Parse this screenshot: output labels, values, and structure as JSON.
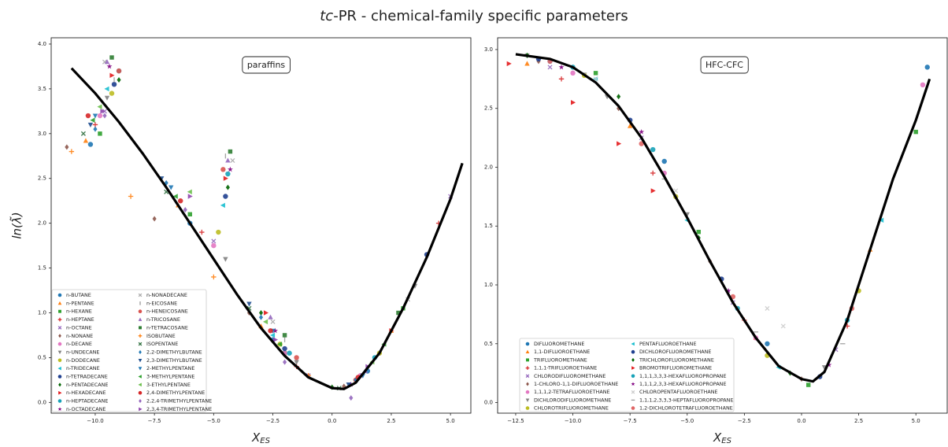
{
  "title": [
    "tc",
    "-PR - chemical-family specific parameters"
  ],
  "chart_data": [
    {
      "type": "scatter",
      "annotation": "paraffins",
      "ylabel": "ln(λ̃)",
      "xlabel": [
        "X",
        "ES"
      ],
      "legend": "lower left",
      "xlim": [
        -11.86,
        5.86
      ],
      "ylim": [
        -0.12,
        4.07
      ],
      "xticks": [
        {
          "value": -10,
          "label": "−10.0"
        },
        {
          "value": -7.5,
          "label": "−7.5"
        },
        {
          "value": -5,
          "label": "−5.0"
        },
        {
          "value": -2.5,
          "label": "−2.5"
        },
        {
          "value": 0,
          "label": "0.0"
        },
        {
          "value": 2.5,
          "label": "2.5"
        },
        {
          "value": 5,
          "label": "5.0"
        }
      ],
      "yticks": [
        {
          "value": 0,
          "label": "0.0"
        },
        0.5,
        {
          "value": 1,
          "label": "1.0"
        },
        1.5,
        {
          "value": 2,
          "label": "2.0"
        },
        2.5,
        {
          "value": 3,
          "label": "3.0"
        },
        3.5,
        {
          "value": 4,
          "label": "4.0"
        }
      ],
      "line": {
        "color": "#000000",
        "x": [
          -11,
          -10,
          -9,
          -8,
          -7,
          -6,
          -5,
          -4,
          -3,
          -2,
          -1,
          0,
          0.5,
          1,
          2,
          3,
          4,
          5,
          5.5
        ],
        "values": [
          3.73,
          3.45,
          3.13,
          2.78,
          2.4,
          2.0,
          1.6,
          1.2,
          0.83,
          0.52,
          0.28,
          0.16,
          0.15,
          0.22,
          0.55,
          1.05,
          1.62,
          2.27,
          2.67
        ]
      },
      "series": [
        {
          "name": "n-BUTANE",
          "color": "#1f77b4",
          "marker": "o",
          "x": [
            -10.2,
            -6,
            -2.5,
            1.5
          ],
          "values": [
            2.88,
            2.0,
            0.7,
            0.35
          ]
        },
        {
          "name": "n-PENTANE",
          "color": "#ff7f0e",
          "marker": "^",
          "x": [
            -10.4,
            -6.5,
            -3,
            2.5
          ],
          "values": [
            2.92,
            2.2,
            0.85,
            0.8
          ]
        },
        {
          "name": "n-HEXANE",
          "color": "#2ca02c",
          "marker": "s",
          "x": [
            -9.8,
            -6,
            -2,
            3
          ],
          "values": [
            3.0,
            2.1,
            0.55,
            1.05
          ]
        },
        {
          "name": "n-HEPTANE",
          "color": "#d62728",
          "marker": "P",
          "x": [
            -10,
            -5.5,
            -1.5,
            4.5
          ],
          "values": [
            3.1,
            1.9,
            0.4,
            2.0
          ]
        },
        {
          "name": "n-OCTANE",
          "color": "#9467bd",
          "marker": "X",
          "x": [
            -9.6,
            -5,
            -1,
            5
          ],
          "values": [
            3.25,
            1.8,
            0.3,
            2.3
          ]
        },
        {
          "name": "n-NONANE",
          "color": "#8c564b",
          "marker": "D",
          "x": [
            -11.2,
            -7.5,
            -3.5,
            0.5
          ],
          "values": [
            2.85,
            2.05,
            1.0,
            0.18
          ]
        },
        {
          "name": "n-DECANE",
          "color": "#e377c2",
          "marker": "o",
          "x": [
            -9.8,
            -5,
            -2,
            1.2
          ],
          "values": [
            3.2,
            1.75,
            0.55,
            0.3
          ]
        },
        {
          "name": "n-UNDECANE",
          "color": "#7f7f7f",
          "marker": "v",
          "x": [
            -9.5,
            -4.5,
            -1.5,
            3.5
          ],
          "values": [
            3.4,
            1.6,
            0.45,
            1.3
          ]
        },
        {
          "name": "n-DODECANE",
          "color": "#bcbd22",
          "marker": "o",
          "x": [
            -9.3,
            -4.8,
            -2.2,
            2
          ],
          "values": [
            3.45,
            1.9,
            0.65,
            0.55
          ]
        },
        {
          "name": "n-TRIDECANE",
          "color": "#17becf",
          "marker": "<",
          "x": [
            -9.5,
            -4.6,
            -2.5,
            1
          ],
          "values": [
            3.5,
            2.2,
            0.75,
            0.25
          ]
        },
        {
          "name": "n-TETRADECANE",
          "color": "#1f3f8f",
          "marker": "o",
          "x": [
            -9.2,
            -4.5,
            -2,
            4
          ],
          "values": [
            3.55,
            2.3,
            0.6,
            1.65
          ]
        },
        {
          "name": "n-PENTADECANE",
          "color": "#006400",
          "marker": "D",
          "x": [
            -9,
            -4.4,
            -3,
            0
          ],
          "values": [
            3.6,
            2.4,
            1.0,
            0.17
          ]
        },
        {
          "name": "n-HEXADECANE",
          "color": "#e31a1c",
          "marker": ">",
          "x": [
            -9.3,
            -4.5,
            -2.8,
            2.5
          ],
          "values": [
            3.65,
            2.5,
            1.0,
            0.8
          ]
        },
        {
          "name": "n-HEPTADECANE",
          "color": "#17a2b8",
          "marker": "o",
          "x": [
            -9,
            -4.4,
            -1.8,
            1.8
          ],
          "values": [
            3.7,
            2.55,
            0.55,
            0.5
          ]
        },
        {
          "name": "n-OCTADECANE",
          "color": "#800080",
          "marker": "*",
          "x": [
            -9.4,
            -4.3,
            -2.4,
            0.8
          ],
          "values": [
            3.75,
            2.6,
            0.8,
            0.2
          ]
        },
        {
          "name": "n-NONADECANE",
          "color": "#aaaaaa",
          "marker": "X",
          "x": [
            -9.6,
            -4.2,
            -2.5,
            3.2
          ],
          "values": [
            3.8,
            2.7,
            0.9,
            1.15
          ]
        },
        {
          "name": "n-EICOSANE",
          "color": "#999999",
          "marker": "|",
          "x": [
            -9.2,
            -4.5,
            -2,
            2
          ],
          "values": [
            3.6,
            2.75,
            0.7,
            0.55
          ]
        },
        {
          "name": "n-HENEICOSANE",
          "color": "#d9534f",
          "marker": "o",
          "x": [
            -9,
            -4.6,
            -1.5,
            1
          ],
          "values": [
            3.7,
            2.6,
            0.5,
            0.25
          ]
        },
        {
          "name": "n-TRICOSANE",
          "color": "#9467bd",
          "marker": "^",
          "x": [
            -9.5,
            -4.4,
            -2.6,
            1.4
          ],
          "values": [
            3.8,
            2.7,
            0.95,
            0.35
          ]
        },
        {
          "name": "n-TETRACOSANE",
          "color": "#2e7d32",
          "marker": "s",
          "x": [
            -9.3,
            -4.3,
            -2,
            2.8
          ],
          "values": [
            3.85,
            2.8,
            0.75,
            1.0
          ]
        },
        {
          "name": "ISOBUTANE",
          "color": "#ff7f0e",
          "marker": "P",
          "x": [
            -11,
            -8.5,
            -5,
            -1
          ],
          "values": [
            2.8,
            2.3,
            1.4,
            0.3
          ]
        },
        {
          "name": "ISOPENTANE",
          "color": "#2f6f3f",
          "marker": "X",
          "x": [
            -10.5,
            -7,
            -3.5,
            0.3
          ],
          "values": [
            3.0,
            2.35,
            1.05,
            0.16
          ]
        },
        {
          "name": "2,2-DIMETHYLBUTANE",
          "color": "#1f77b4",
          "marker": "D",
          "x": [
            -10,
            -7,
            -3,
            1
          ],
          "values": [
            3.05,
            2.45,
            0.95,
            0.25
          ]
        },
        {
          "name": "2,3-DIMETHYLBUTANE",
          "color": "#1f4e8f",
          "marker": "v",
          "x": [
            -10.2,
            -7.2,
            -3.5,
            0.7
          ],
          "values": [
            3.1,
            2.5,
            1.1,
            0.2
          ]
        },
        {
          "name": "2-METHYLPENTANE",
          "color": "#1f77b4",
          "marker": "v",
          "x": [
            -10,
            -6.8,
            -2.5,
            1.3
          ],
          "values": [
            3.2,
            2.4,
            0.8,
            0.3
          ]
        },
        {
          "name": "3-METHYLPENTANE",
          "color": "#2ca02c",
          "marker": "<",
          "x": [
            -10.1,
            -6.6,
            -2.2,
            2.2
          ],
          "values": [
            3.15,
            2.3,
            0.65,
            0.65
          ]
        },
        {
          "name": "3-ETHYLPENTANE",
          "color": "#6abf4b",
          "marker": "<",
          "x": [
            -9.8,
            -6,
            -2.8,
            1.7
          ],
          "values": [
            3.3,
            2.35,
            0.9,
            0.45
          ]
        },
        {
          "name": "2,4-DIMETHYLPENTANE",
          "color": "#d62728",
          "marker": "o",
          "x": [
            -10.3,
            -6.4,
            -2.6,
            1.1
          ],
          "values": [
            3.2,
            2.25,
            0.8,
            0.28
          ]
        },
        {
          "name": "2,2,4-TRIMETHYLPENTANE",
          "color": "#9467bd",
          "marker": "D",
          "x": [
            -9.6,
            -6.2,
            -2,
            0.8
          ],
          "values": [
            3.2,
            2.15,
            0.45,
            0.05
          ]
        },
        {
          "name": "2,3,4-TRIMETHYLPENTANE",
          "color": "#8e44ad",
          "marker": ">",
          "x": [
            -9.7,
            -6,
            -2.4,
            1.5
          ],
          "values": [
            3.25,
            2.3,
            0.7,
            0.4
          ]
        }
      ]
    },
    {
      "type": "scatter",
      "annotation": "HFC-CFC",
      "xlabel": [
        "X",
        "ES"
      ],
      "legend": "lower left",
      "xlim": [
        -13.29,
        6.37
      ],
      "ylim": [
        -0.09,
        3.1
      ],
      "xticks": [
        {
          "value": -12.5,
          "label": "−12.5"
        },
        {
          "value": -10,
          "label": "−10.0"
        },
        {
          "value": -7.5,
          "label": "−7.5"
        },
        {
          "value": -5,
          "label": "−5.0"
        },
        {
          "value": -2.5,
          "label": "−2.5"
        },
        {
          "value": 0,
          "label": "0.0"
        },
        {
          "value": 2.5,
          "label": "2.5"
        },
        {
          "value": 5,
          "label": "5.0"
        }
      ],
      "yticks": [
        {
          "value": 0,
          "label": "0.0"
        },
        0.5,
        {
          "value": 1,
          "label": "1.0"
        },
        1.5,
        {
          "value": 2,
          "label": "2.0"
        },
        2.5,
        {
          "value": 3,
          "label": "3.0"
        }
      ],
      "line": {
        "color": "#000000",
        "x": [
          -12.5,
          -11,
          -10,
          -9,
          -8,
          -7,
          -6,
          -5,
          -4,
          -3,
          -2,
          -1,
          0,
          0.5,
          1,
          2,
          3,
          4,
          5,
          5.6
        ],
        "values": [
          2.96,
          2.92,
          2.85,
          2.72,
          2.52,
          2.25,
          1.92,
          1.57,
          1.2,
          0.85,
          0.55,
          0.31,
          0.2,
          0.18,
          0.26,
          0.7,
          1.3,
          1.9,
          2.4,
          2.75
        ]
      },
      "series": [
        {
          "name": "DIFLUOROMETHANE",
          "color": "#1f77b4",
          "marker": "o",
          "x": [
            -11,
            -6,
            -1.5,
            5.5
          ],
          "values": [
            2.9,
            2.05,
            0.5,
            2.85
          ]
        },
        {
          "name": "1,1-DIFLUOROETHANE",
          "color": "#ff7f0e",
          "marker": "^",
          "x": [
            -12,
            -7.5,
            -2,
            3
          ],
          "values": [
            2.88,
            2.35,
            0.55,
            1.3
          ]
        },
        {
          "name": "TRIFLUOROMETHANE",
          "color": "#2ca02c",
          "marker": "s",
          "x": [
            -9,
            -4.5,
            0.3,
            5
          ],
          "values": [
            2.8,
            1.45,
            0.15,
            2.3
          ]
        },
        {
          "name": "1,1,1-TRIFLUOROETHANE",
          "color": "#d62728",
          "marker": "P",
          "x": [
            -10.5,
            -6.5,
            -2.5,
            2
          ],
          "values": [
            2.75,
            1.95,
            0.7,
            0.65
          ]
        },
        {
          "name": "CHLORODIFLUOROMETHANE",
          "color": "#9467bd",
          "marker": "X",
          "x": [
            -11,
            -7,
            -3,
            1.5
          ],
          "values": [
            2.85,
            2.25,
            0.85,
            0.45
          ]
        },
        {
          "name": "1-CHLORO-1,1-DIFLUOROETHANE",
          "color": "#8c564b",
          "marker": "D",
          "x": [
            -11.5,
            -8,
            -4,
            0
          ],
          "values": [
            2.9,
            2.5,
            1.2,
            0.2
          ]
        },
        {
          "name": "1,1,1,2-TETRAFLUOROETHANE",
          "color": "#e377c2",
          "marker": "o",
          "x": [
            -10,
            -6,
            -2,
            5.3
          ],
          "values": [
            2.8,
            1.95,
            0.55,
            2.7
          ]
        },
        {
          "name": "DICHLORODIFLUOROMETHANE",
          "color": "#7f7f7f",
          "marker": "v",
          "x": [
            -12,
            -8.5,
            -5,
            1
          ],
          "values": [
            2.95,
            2.6,
            1.6,
            0.3
          ]
        },
        {
          "name": "CHLOROTRIFLUOROMETHANE",
          "color": "#bcbd22",
          "marker": "o",
          "x": [
            -9.5,
            -5.5,
            -1.5,
            2.5
          ],
          "values": [
            2.78,
            1.75,
            0.4,
            0.95
          ]
        },
        {
          "name": "PENTAFLUOROETHANE",
          "color": "#17becf",
          "marker": "<",
          "x": [
            -9,
            -5,
            -1,
            3.5
          ],
          "values": [
            2.75,
            1.55,
            0.3,
            1.55
          ]
        },
        {
          "name": "DICHLOROFLUOROMETHANE",
          "color": "#1f3f8f",
          "marker": "o",
          "x": [
            -11.5,
            -7.5,
            -3.5,
            0.8
          ],
          "values": [
            2.92,
            2.4,
            1.05,
            0.22
          ]
        },
        {
          "name": "TRICHLOROFLUOROMETHANE",
          "color": "#006400",
          "marker": "D",
          "x": [
            -12,
            -8,
            -4.5,
            -0.5
          ],
          "values": [
            2.95,
            2.6,
            1.4,
            0.25
          ]
        },
        {
          "name": "BROMOTRIFLUOROMETHANE",
          "color": "#e31a1c",
          "marker": ">",
          "x": [
            -12.8,
            -10,
            -8,
            -6.5
          ],
          "values": [
            2.88,
            2.55,
            2.2,
            1.8
          ]
        },
        {
          "name": "1,1,1,3,3,3-HEXAFLUOROPROPANE",
          "color": "#17a2b8",
          "marker": "o",
          "x": [
            -10,
            -6.5,
            -2.8,
            2
          ],
          "values": [
            2.85,
            2.15,
            0.8,
            0.7
          ]
        },
        {
          "name": "1,1,1,2,3,3-HEXAFLUOROPROPANE",
          "color": "#800080",
          "marker": "*",
          "x": [
            -10.5,
            -7,
            -3.2,
            1.2
          ],
          "values": [
            2.85,
            2.3,
            0.95,
            0.32
          ]
        },
        {
          "name": "CHLOROPENTAFLUOROETHANE",
          "color": "#cccccc",
          "marker": "X",
          "x": [
            -9,
            -5.5,
            -1.5,
            -0.8
          ],
          "values": [
            2.75,
            1.8,
            0.8,
            0.65
          ]
        },
        {
          "name": "1,1,1,2,3,3,3-HEPTAFLUOROPROPANE",
          "color": "#999999",
          "marker": "_",
          "x": [
            -9.5,
            -6,
            -2,
            1.8
          ],
          "values": [
            2.8,
            1.9,
            0.6,
            0.5
          ]
        },
        {
          "name": "1,2-DICHLOROTETRAFLUOROETHANE",
          "color": "#e06666",
          "marker": "o",
          "x": [
            -11,
            -7,
            -3,
            2.2
          ],
          "values": [
            2.9,
            2.2,
            0.9,
            0.8
          ]
        }
      ]
    }
  ]
}
